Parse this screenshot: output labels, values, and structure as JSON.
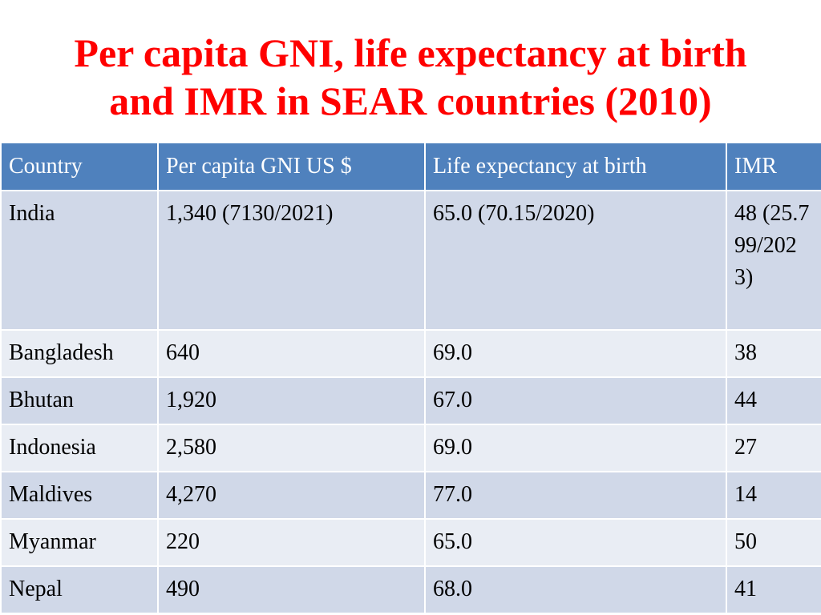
{
  "slide": {
    "title_line1": "Per capita GNI, life expectancy at birth",
    "title_line2": "and IMR in SEAR countries (2010)"
  },
  "table": {
    "headers": [
      "Country",
      "Per capita GNI US $",
      "Life expectancy at birth",
      "IMR"
    ],
    "rows": [
      [
        "India",
        "1,340 (7130/2021)",
        "65.0 (70.15/2020)",
        "48 (25.799/2023)"
      ],
      [
        "Bangladesh",
        "640",
        "69.0",
        "38"
      ],
      [
        "Bhutan",
        "1,920",
        "67.0",
        "44"
      ],
      [
        "Indonesia",
        "2,580",
        "69.0",
        "27"
      ],
      [
        "Maldives",
        "4,270",
        "77.0",
        "14"
      ],
      [
        "Myanmar",
        "220",
        "65.0",
        "50"
      ],
      [
        "Nepal",
        "490",
        "68.0",
        "41"
      ]
    ]
  },
  "colors": {
    "title": "#ff0000",
    "header_bg": "#4f81bd",
    "row_odd_bg": "#d0d8e8",
    "row_even_bg": "#e9edf4"
  }
}
